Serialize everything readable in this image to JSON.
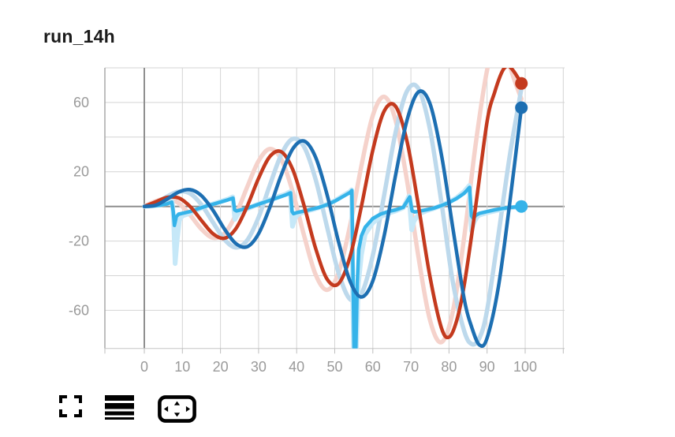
{
  "panel": {
    "title": "run_14h"
  },
  "toolbar": {
    "color": "#2b7de9",
    "buttons": [
      {
        "name": "fullscreen-button",
        "icon": "fullscreen-corners-icon"
      },
      {
        "name": "list-button",
        "icon": "list-lines-icon"
      },
      {
        "name": "pan-button",
        "icon": "pan-arrows-icon"
      }
    ]
  },
  "chart_data": {
    "type": "line",
    "title": "run_14h",
    "xlabel": "",
    "ylabel": "",
    "legend": "none",
    "grid": true,
    "background": "#ffffff",
    "x_range": [
      -10.35,
      110.35
    ],
    "y_range": [
      -82,
      80
    ],
    "x_gridlines": [
      0,
      10,
      20,
      30,
      40,
      50,
      60,
      70,
      80,
      90,
      100,
      110
    ],
    "y_gridlines": [
      80,
      60,
      40,
      20,
      0,
      -20,
      -40,
      -60
    ],
    "x_tick_values": [
      0,
      10,
      20,
      30,
      40,
      50,
      60,
      70,
      80,
      90,
      100
    ],
    "x_tick_labels": [
      "0",
      "10",
      "20",
      "30",
      "40",
      "50",
      "60",
      "70",
      "80",
      "90",
      "100"
    ],
    "y_tick_values": [
      60,
      20,
      -20,
      -60
    ],
    "y_tick_labels": [
      "60",
      "20",
      "-20",
      "-60"
    ],
    "colors": {
      "grid": "#d4d4d4",
      "zero_axis": "#8f8f8f",
      "left_border": "#a9a9a9",
      "bottom_border": "#c6c6c6",
      "tick_mark": "#bdbdbd",
      "tick_label": "#9a9a9a"
    },
    "series": [
      {
        "name": "red-raw",
        "role": "raw",
        "color": "#f5d2cb",
        "stroke_width": 5.5,
        "smooth": true,
        "points": [
          [
            0,
            0
          ],
          [
            3,
            3
          ],
          [
            6,
            4.5
          ],
          [
            9,
            1.9
          ],
          [
            12,
            -4.9
          ],
          [
            15,
            -13.1
          ],
          [
            18,
            -18.1
          ],
          [
            21,
            -15.8
          ],
          [
            24,
            -5
          ],
          [
            27,
            11.1
          ],
          [
            30,
            26.2
          ],
          [
            33,
            33.2
          ],
          [
            36,
            27
          ],
          [
            39,
            8.2
          ],
          [
            42,
            -17.3
          ],
          [
            45,
            -39.4
          ],
          [
            48,
            -48.2
          ],
          [
            51,
            -38.3
          ],
          [
            54,
            -11.3
          ],
          [
            57,
            23.4
          ],
          [
            60,
            52.5
          ],
          [
            63,
            63.3
          ],
          [
            66,
            49.5
          ],
          [
            69,
            14.5
          ],
          [
            72,
            -29.6
          ],
          [
            75,
            -65.6
          ],
          [
            78,
            -78.4
          ],
          [
            81,
            -60.8
          ],
          [
            84,
            -17.6
          ],
          [
            87,
            35.8
          ],
          [
            90,
            78.7
          ],
          [
            92,
            90
          ],
          [
            95,
            86
          ],
          [
            97,
            74
          ],
          [
            99,
            62
          ]
        ]
      },
      {
        "name": "blue-raw",
        "role": "raw",
        "color": "#bdd9ec",
        "stroke_width": 5.5,
        "smooth": true,
        "points": [
          [
            0,
            0
          ],
          [
            3,
            1.9
          ],
          [
            6,
            5.7
          ],
          [
            9,
            8.6
          ],
          [
            12,
            7.5
          ],
          [
            15,
            1
          ],
          [
            18,
            -9.1
          ],
          [
            21,
            -19
          ],
          [
            24,
            -23.7
          ],
          [
            27,
            -19.6
          ],
          [
            30,
            -6.3
          ],
          [
            33,
            12.5
          ],
          [
            36,
            30.1
          ],
          [
            39,
            39
          ],
          [
            42,
            34.2
          ],
          [
            45,
            15.5
          ],
          [
            48,
            -11.9
          ],
          [
            51,
            -38.3
          ],
          [
            54,
            -53.6
          ],
          [
            57,
            -50.6
          ],
          [
            60,
            -28.3
          ],
          [
            63,
            6.8
          ],
          [
            66,
            43
          ],
          [
            69,
            66.7
          ],
          [
            72,
            67.9
          ],
          [
            75,
            44.4
          ],
          [
            78,
            2.6
          ],
          [
            81,
            -43.5
          ],
          [
            84,
            -72
          ],
          [
            86,
            -79.5
          ],
          [
            88,
            -76
          ],
          [
            90,
            -60
          ],
          [
            93,
            -16
          ],
          [
            96,
            30
          ],
          [
            99,
            68
          ]
        ]
      },
      {
        "name": "cyan-raw",
        "role": "raw",
        "color": "#c6e8f8",
        "stroke_width": 6,
        "smooth": false,
        "points": [
          [
            0,
            0
          ],
          [
            2,
            0.3
          ],
          [
            4,
            0.8
          ],
          [
            6,
            1.8
          ],
          [
            7.3,
            3
          ],
          [
            7.7,
            -8
          ],
          [
            8.1,
            -33
          ],
          [
            8.6,
            -20
          ],
          [
            9.2,
            -8
          ],
          [
            10,
            -5.5
          ],
          [
            12,
            -4
          ],
          [
            14,
            -2
          ],
          [
            16,
            0.2
          ],
          [
            18,
            1.4
          ],
          [
            20,
            2.8
          ],
          [
            22,
            4.2
          ],
          [
            23.2,
            5.5
          ],
          [
            23.8,
            -7.5
          ],
          [
            24.4,
            -5
          ],
          [
            25,
            -3.2
          ],
          [
            27,
            -1.5
          ],
          [
            29,
            0.5
          ],
          [
            31,
            2.2
          ],
          [
            33,
            4
          ],
          [
            35,
            5.6
          ],
          [
            37,
            7
          ],
          [
            38.3,
            8.5
          ],
          [
            38.9,
            -11.5
          ],
          [
            39.5,
            -7
          ],
          [
            40.2,
            -5
          ],
          [
            42,
            -3
          ],
          [
            44,
            -2
          ],
          [
            46,
            -0.6
          ],
          [
            48,
            1.2
          ],
          [
            50,
            3.2
          ],
          [
            52,
            6
          ],
          [
            54,
            8.6
          ],
          [
            54.4,
            9.6
          ],
          [
            54.7,
            -50
          ],
          [
            55,
            -88
          ],
          [
            55.6,
            -88
          ],
          [
            56.2,
            -45
          ],
          [
            57,
            -28
          ],
          [
            58,
            -16
          ],
          [
            60,
            -9.5
          ],
          [
            62,
            -6
          ],
          [
            64,
            -4
          ],
          [
            66,
            -2.6
          ],
          [
            68,
            -0.8
          ],
          [
            69.5,
            6
          ],
          [
            70.2,
            -13.5
          ],
          [
            70.8,
            -8.5
          ],
          [
            72,
            -4.5
          ],
          [
            74,
            -2.6
          ],
          [
            76,
            -1.2
          ],
          [
            78,
            0.6
          ],
          [
            80,
            2.5
          ],
          [
            82,
            5
          ],
          [
            84,
            8.6
          ],
          [
            85.3,
            12
          ],
          [
            85.9,
            -14
          ],
          [
            86.6,
            -9
          ],
          [
            87.4,
            -6
          ],
          [
            88,
            -5
          ],
          [
            90,
            -3.6
          ],
          [
            92,
            -2.6
          ],
          [
            94,
            -1.6
          ],
          [
            96,
            -0.8
          ],
          [
            99,
            -0.2
          ]
        ]
      },
      {
        "name": "cyan-smoothed",
        "role": "smoothed",
        "color": "#35b3e9",
        "stroke_width": 4.5,
        "smooth": false,
        "dot": [
          99,
          0
        ],
        "points": [
          [
            0,
            0
          ],
          [
            2,
            0.2
          ],
          [
            4,
            0.6
          ],
          [
            6,
            1.5
          ],
          [
            7.2,
            2.5
          ],
          [
            7.6,
            -3
          ],
          [
            7.9,
            -11
          ],
          [
            8.4,
            -6
          ],
          [
            9,
            -4.5
          ],
          [
            10,
            -4
          ],
          [
            12,
            -3
          ],
          [
            14,
            -1.5
          ],
          [
            16,
            0
          ],
          [
            18,
            1.2
          ],
          [
            20,
            2.5
          ],
          [
            22,
            3.8
          ],
          [
            23.3,
            4.8
          ],
          [
            23.7,
            -2
          ],
          [
            24.2,
            -2.6
          ],
          [
            25,
            -2.2
          ],
          [
            27,
            -1
          ],
          [
            29,
            0.5
          ],
          [
            31,
            2
          ],
          [
            33,
            3.5
          ],
          [
            35,
            5
          ],
          [
            37,
            6.5
          ],
          [
            38.4,
            7.8
          ],
          [
            38.8,
            -3
          ],
          [
            39.2,
            -4.2
          ],
          [
            40,
            -3.6
          ],
          [
            42,
            -2.6
          ],
          [
            44,
            -1.6
          ],
          [
            46,
            -0.5
          ],
          [
            48,
            1
          ],
          [
            50,
            3
          ],
          [
            52,
            5.5
          ],
          [
            54,
            8
          ],
          [
            54.5,
            9.2
          ],
          [
            54.8,
            -40
          ],
          [
            55.1,
            -86
          ],
          [
            55.5,
            -86
          ],
          [
            55.9,
            -45
          ],
          [
            56.3,
            -25
          ],
          [
            57,
            -17
          ],
          [
            58,
            -12
          ],
          [
            60,
            -7
          ],
          [
            62,
            -4.5
          ],
          [
            64,
            -3
          ],
          [
            66,
            -2
          ],
          [
            68,
            -0.5
          ],
          [
            69.7,
            5.5
          ],
          [
            70.3,
            -2.6
          ],
          [
            71,
            -3.2
          ],
          [
            72,
            -2.8
          ],
          [
            74,
            -2
          ],
          [
            76,
            -1
          ],
          [
            78,
            0.5
          ],
          [
            80,
            2.2
          ],
          [
            82,
            4.6
          ],
          [
            84,
            7.6
          ],
          [
            85.4,
            11
          ],
          [
            85.9,
            -5.5
          ],
          [
            86.4,
            -7
          ],
          [
            87,
            -5.2
          ],
          [
            88,
            -4
          ],
          [
            90,
            -3
          ],
          [
            92,
            -2
          ],
          [
            94,
            -1.2
          ],
          [
            96,
            -0.6
          ],
          [
            99,
            0
          ]
        ]
      },
      {
        "name": "red-smoothed",
        "role": "smoothed",
        "color": "#c43a1e",
        "stroke_width": 4.5,
        "smooth": true,
        "dot": [
          99,
          71
        ],
        "points": [
          [
            0,
            0
          ],
          [
            3,
            2.6
          ],
          [
            6,
            5.2
          ],
          [
            9,
            4.9
          ],
          [
            12,
            0
          ],
          [
            15,
            -8.1
          ],
          [
            18,
            -15.7
          ],
          [
            21,
            -18.4
          ],
          [
            24,
            -13
          ],
          [
            27,
            0
          ],
          [
            30,
            16.2
          ],
          [
            33,
            28.9
          ],
          [
            36,
            31.5
          ],
          [
            39,
            21.1
          ],
          [
            42,
            0
          ],
          [
            45,
            -24.3
          ],
          [
            48,
            -42
          ],
          [
            51,
            -44.6
          ],
          [
            54,
            -29.2
          ],
          [
            57,
            0
          ],
          [
            60,
            32.5
          ],
          [
            63,
            55.1
          ],
          [
            66,
            57.7
          ],
          [
            69,
            37.3
          ],
          [
            72,
            0
          ],
          [
            75,
            -40.6
          ],
          [
            78,
            -70
          ],
          [
            80,
            -75.5
          ],
          [
            82,
            -66
          ],
          [
            84,
            -45.4
          ],
          [
            87,
            0
          ],
          [
            90,
            49
          ],
          [
            92,
            66
          ],
          [
            94,
            78
          ],
          [
            95.5,
            81
          ],
          [
            97,
            78
          ],
          [
            99,
            71
          ]
        ]
      },
      {
        "name": "blue-smoothed",
        "role": "smoothed",
        "color": "#1d6fb2",
        "stroke_width": 4.5,
        "smooth": true,
        "dot": [
          99,
          57
        ],
        "points": [
          [
            0,
            0
          ],
          [
            3,
            0.7
          ],
          [
            6,
            4.2
          ],
          [
            9,
            8.2
          ],
          [
            12,
            9.7
          ],
          [
            15,
            6.2
          ],
          [
            18,
            -2.1
          ],
          [
            21,
            -12.9
          ],
          [
            24,
            -21.4
          ],
          [
            27,
            -23.3
          ],
          [
            30,
            -15.8
          ],
          [
            33,
            -0.3
          ],
          [
            36,
            18.4
          ],
          [
            39,
            33.3
          ],
          [
            42,
            37.7
          ],
          [
            45,
            28.3
          ],
          [
            48,
            6.7
          ],
          [
            51,
            -20.4
          ],
          [
            54,
            -43.1
          ],
          [
            57,
            -52.3
          ],
          [
            60,
            -43
          ],
          [
            63,
            -16.7
          ],
          [
            66,
            18.4
          ],
          [
            69,
            50
          ],
          [
            72,
            66.1
          ],
          [
            75,
            59.3
          ],
          [
            78,
            30.1
          ],
          [
            81,
            -12.3
          ],
          [
            84,
            -53.6
          ],
          [
            86,
            -70
          ],
          [
            88,
            -80
          ],
          [
            90,
            -76
          ],
          [
            93,
            -46
          ],
          [
            96,
            3
          ],
          [
            99,
            57
          ]
        ]
      }
    ],
    "end_dot_radius": 8
  }
}
